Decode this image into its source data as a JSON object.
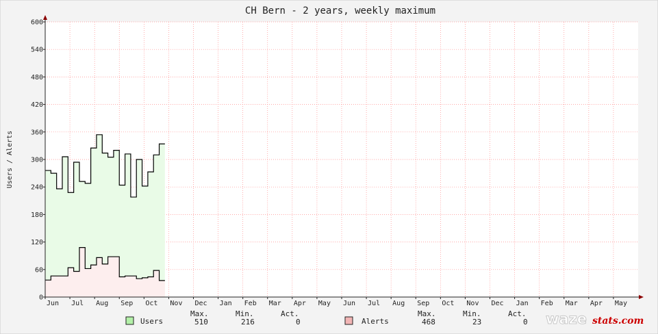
{
  "chart_data": {
    "type": "area",
    "title": "CH Bern - 2 years, weekly maximum",
    "ylabel": "Users / Alerts",
    "ylim": [
      0,
      600
    ],
    "yticks": [
      "0",
      "60",
      "120",
      "180",
      "240",
      "300",
      "360",
      "420",
      "480",
      "540",
      "600"
    ],
    "xticks": [
      "Jun",
      "Jul",
      "Aug",
      "Sep",
      "Oct",
      "Nov",
      "Dec",
      "Jan",
      "Feb",
      "Mar",
      "Apr",
      "May",
      "Jun",
      "Jul",
      "Aug",
      "Sep",
      "Oct",
      "Nov",
      "Dec",
      "Jan",
      "Feb",
      "Mar",
      "Apr",
      "May"
    ],
    "x_unit": "weeks since chart start",
    "grid": true,
    "series": [
      {
        "name": "Users",
        "color": "#000000",
        "fill": "#e9fbe7",
        "swatch": "#b3f0a8",
        "values": [
          276,
          270,
          236,
          306,
          228,
          294,
          252,
          248,
          325,
          354,
          314,
          305,
          320,
          244,
          312,
          218,
          300,
          242,
          273,
          310,
          334,
          null,
          null,
          null,
          null,
          null,
          null,
          null,
          null,
          null,
          null,
          null,
          null,
          null,
          null,
          null,
          null,
          null,
          null,
          null,
          null,
          null,
          null,
          null,
          null,
          null,
          null,
          null,
          null,
          null,
          null,
          null,
          null,
          null,
          null,
          null,
          null,
          null,
          null,
          null,
          null,
          null,
          null,
          null,
          null,
          null,
          null,
          null,
          null,
          null,
          null,
          null,
          null,
          null,
          null,
          null,
          null,
          null,
          null,
          null,
          null,
          null,
          null,
          null,
          null,
          null,
          null,
          null,
          null,
          null,
          null,
          null,
          null,
          null,
          null,
          null,
          null,
          null,
          null,
          null,
          null,
          null,
          null,
          null,
          null
        ]
      },
      {
        "name": "Alerts",
        "color": "#000000",
        "fill": "#fdeeee",
        "swatch": "#f2b5b5",
        "values": [
          37,
          46,
          46,
          46,
          64,
          56,
          108,
          62,
          70,
          86,
          72,
          88,
          88,
          44,
          46,
          46,
          40,
          42,
          44,
          58,
          36,
          null,
          null,
          null,
          null,
          null,
          null,
          null,
          null,
          null,
          null,
          null,
          null,
          null,
          null,
          null,
          null,
          null,
          null,
          null,
          null,
          null,
          null,
          null,
          null,
          null,
          null,
          null,
          null,
          null,
          null,
          null,
          null,
          null,
          null,
          null,
          null,
          null,
          null,
          null,
          null,
          null,
          null,
          null,
          null,
          null,
          null,
          null,
          null,
          null,
          null,
          null,
          null,
          null,
          null,
          null,
          null,
          null,
          null,
          null,
          null,
          null,
          null,
          null,
          null,
          null,
          null,
          null,
          null,
          null,
          null,
          null,
          null,
          null,
          null,
          null,
          null,
          null,
          null,
          null,
          null,
          null,
          null
        ]
      }
    ]
  },
  "legend": [
    {
      "name": "Users",
      "max_label": "Max.",
      "min_label": "Min.",
      "act_label": "Act.",
      "max": "510",
      "min": "216",
      "act": "0"
    },
    {
      "name": "Alerts",
      "max_label": "Max.",
      "min_label": "Min.",
      "act_label": "Act.",
      "max": "468",
      "min": "23",
      "act": "0"
    }
  ],
  "brand": {
    "waze": "waze",
    "stats": "stats.com"
  }
}
